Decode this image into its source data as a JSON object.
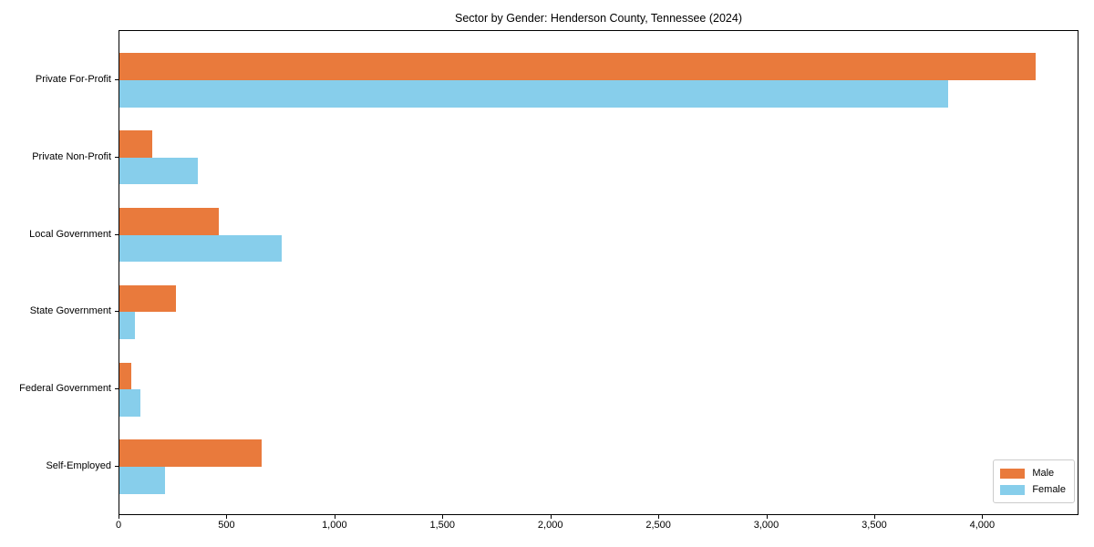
{
  "title": "Sector by Gender: Henderson County, Tennessee (2024)",
  "chart_data": {
    "type": "bar",
    "orientation": "horizontal",
    "title": "Sector by Gender: Henderson County, Tennessee (2024)",
    "xlabel": "",
    "ylabel": "",
    "categories": [
      "Private For-Profit",
      "Private Non-Profit",
      "Local Government",
      "State Government",
      "Federal Government",
      "Self-Employed"
    ],
    "series": [
      {
        "name": "Male",
        "color": "#e97a3c",
        "values": [
          4245,
          150,
          460,
          260,
          55,
          660
        ]
      },
      {
        "name": "Female",
        "color": "#87ceeb",
        "values": [
          3840,
          365,
          750,
          70,
          95,
          210
        ]
      }
    ],
    "xlim": [
      0,
      4450
    ],
    "xticks": [
      0,
      500,
      1000,
      1500,
      2000,
      2500,
      3000,
      3500,
      4000
    ],
    "xtick_labels": [
      "0",
      "500",
      "1,000",
      "1,500",
      "2,000",
      "2,500",
      "3,000",
      "3,500",
      "4,000"
    ],
    "grid": false,
    "legend_position": "lower right"
  }
}
